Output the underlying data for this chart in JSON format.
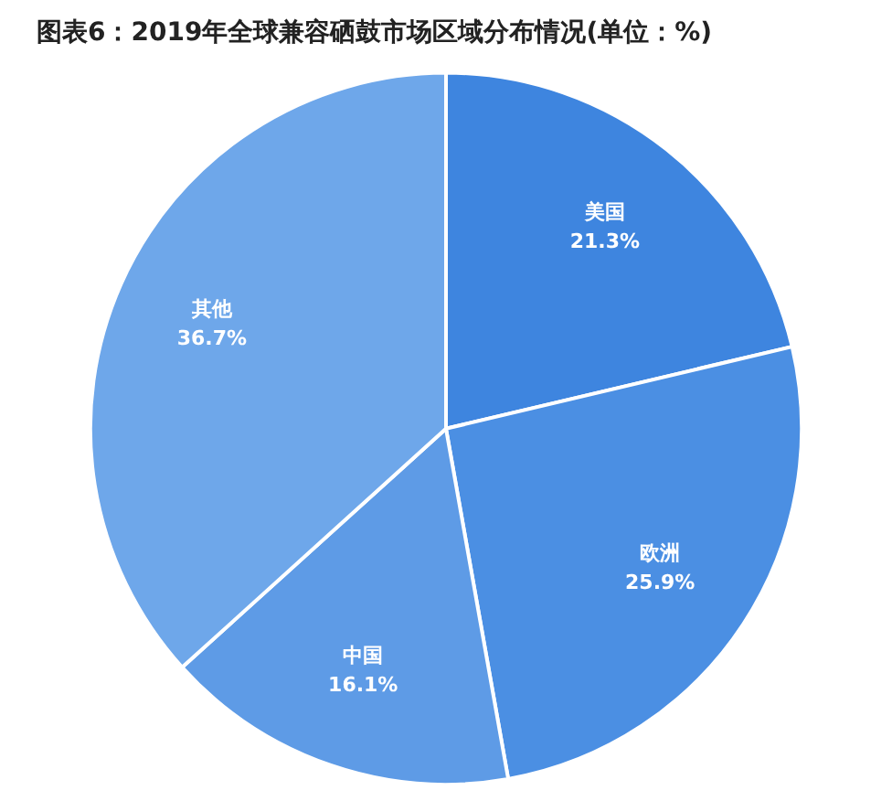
{
  "chart_data": {
    "type": "pie",
    "title": "图表6：2019年全球兼容硒鼓市场区域分布情况(单位：%)",
    "categories": [
      "美国",
      "欧洲",
      "中国",
      "其他"
    ],
    "values": [
      21.3,
      25.9,
      16.1,
      36.7
    ],
    "value_labels": [
      "21.3%",
      "25.9%",
      "16.1%",
      "36.7%"
    ],
    "colors": [
      "#3e85df",
      "#4b8fe3",
      "#5e9be6",
      "#6ea7ea"
    ],
    "legend": false
  }
}
